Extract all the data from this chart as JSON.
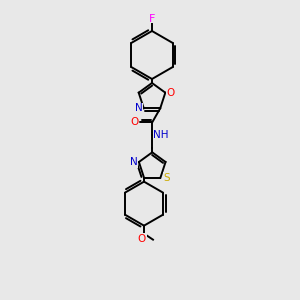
{
  "background_color": "#e8e8e8",
  "bond_color": "#000000",
  "atom_colors": {
    "F": "#ff00ff",
    "O": "#ff0000",
    "N": "#0000cc",
    "S": "#ccaa00",
    "H": "#000000",
    "C": "#000000"
  },
  "figsize": [
    3.0,
    3.0
  ],
  "dpi": 100
}
